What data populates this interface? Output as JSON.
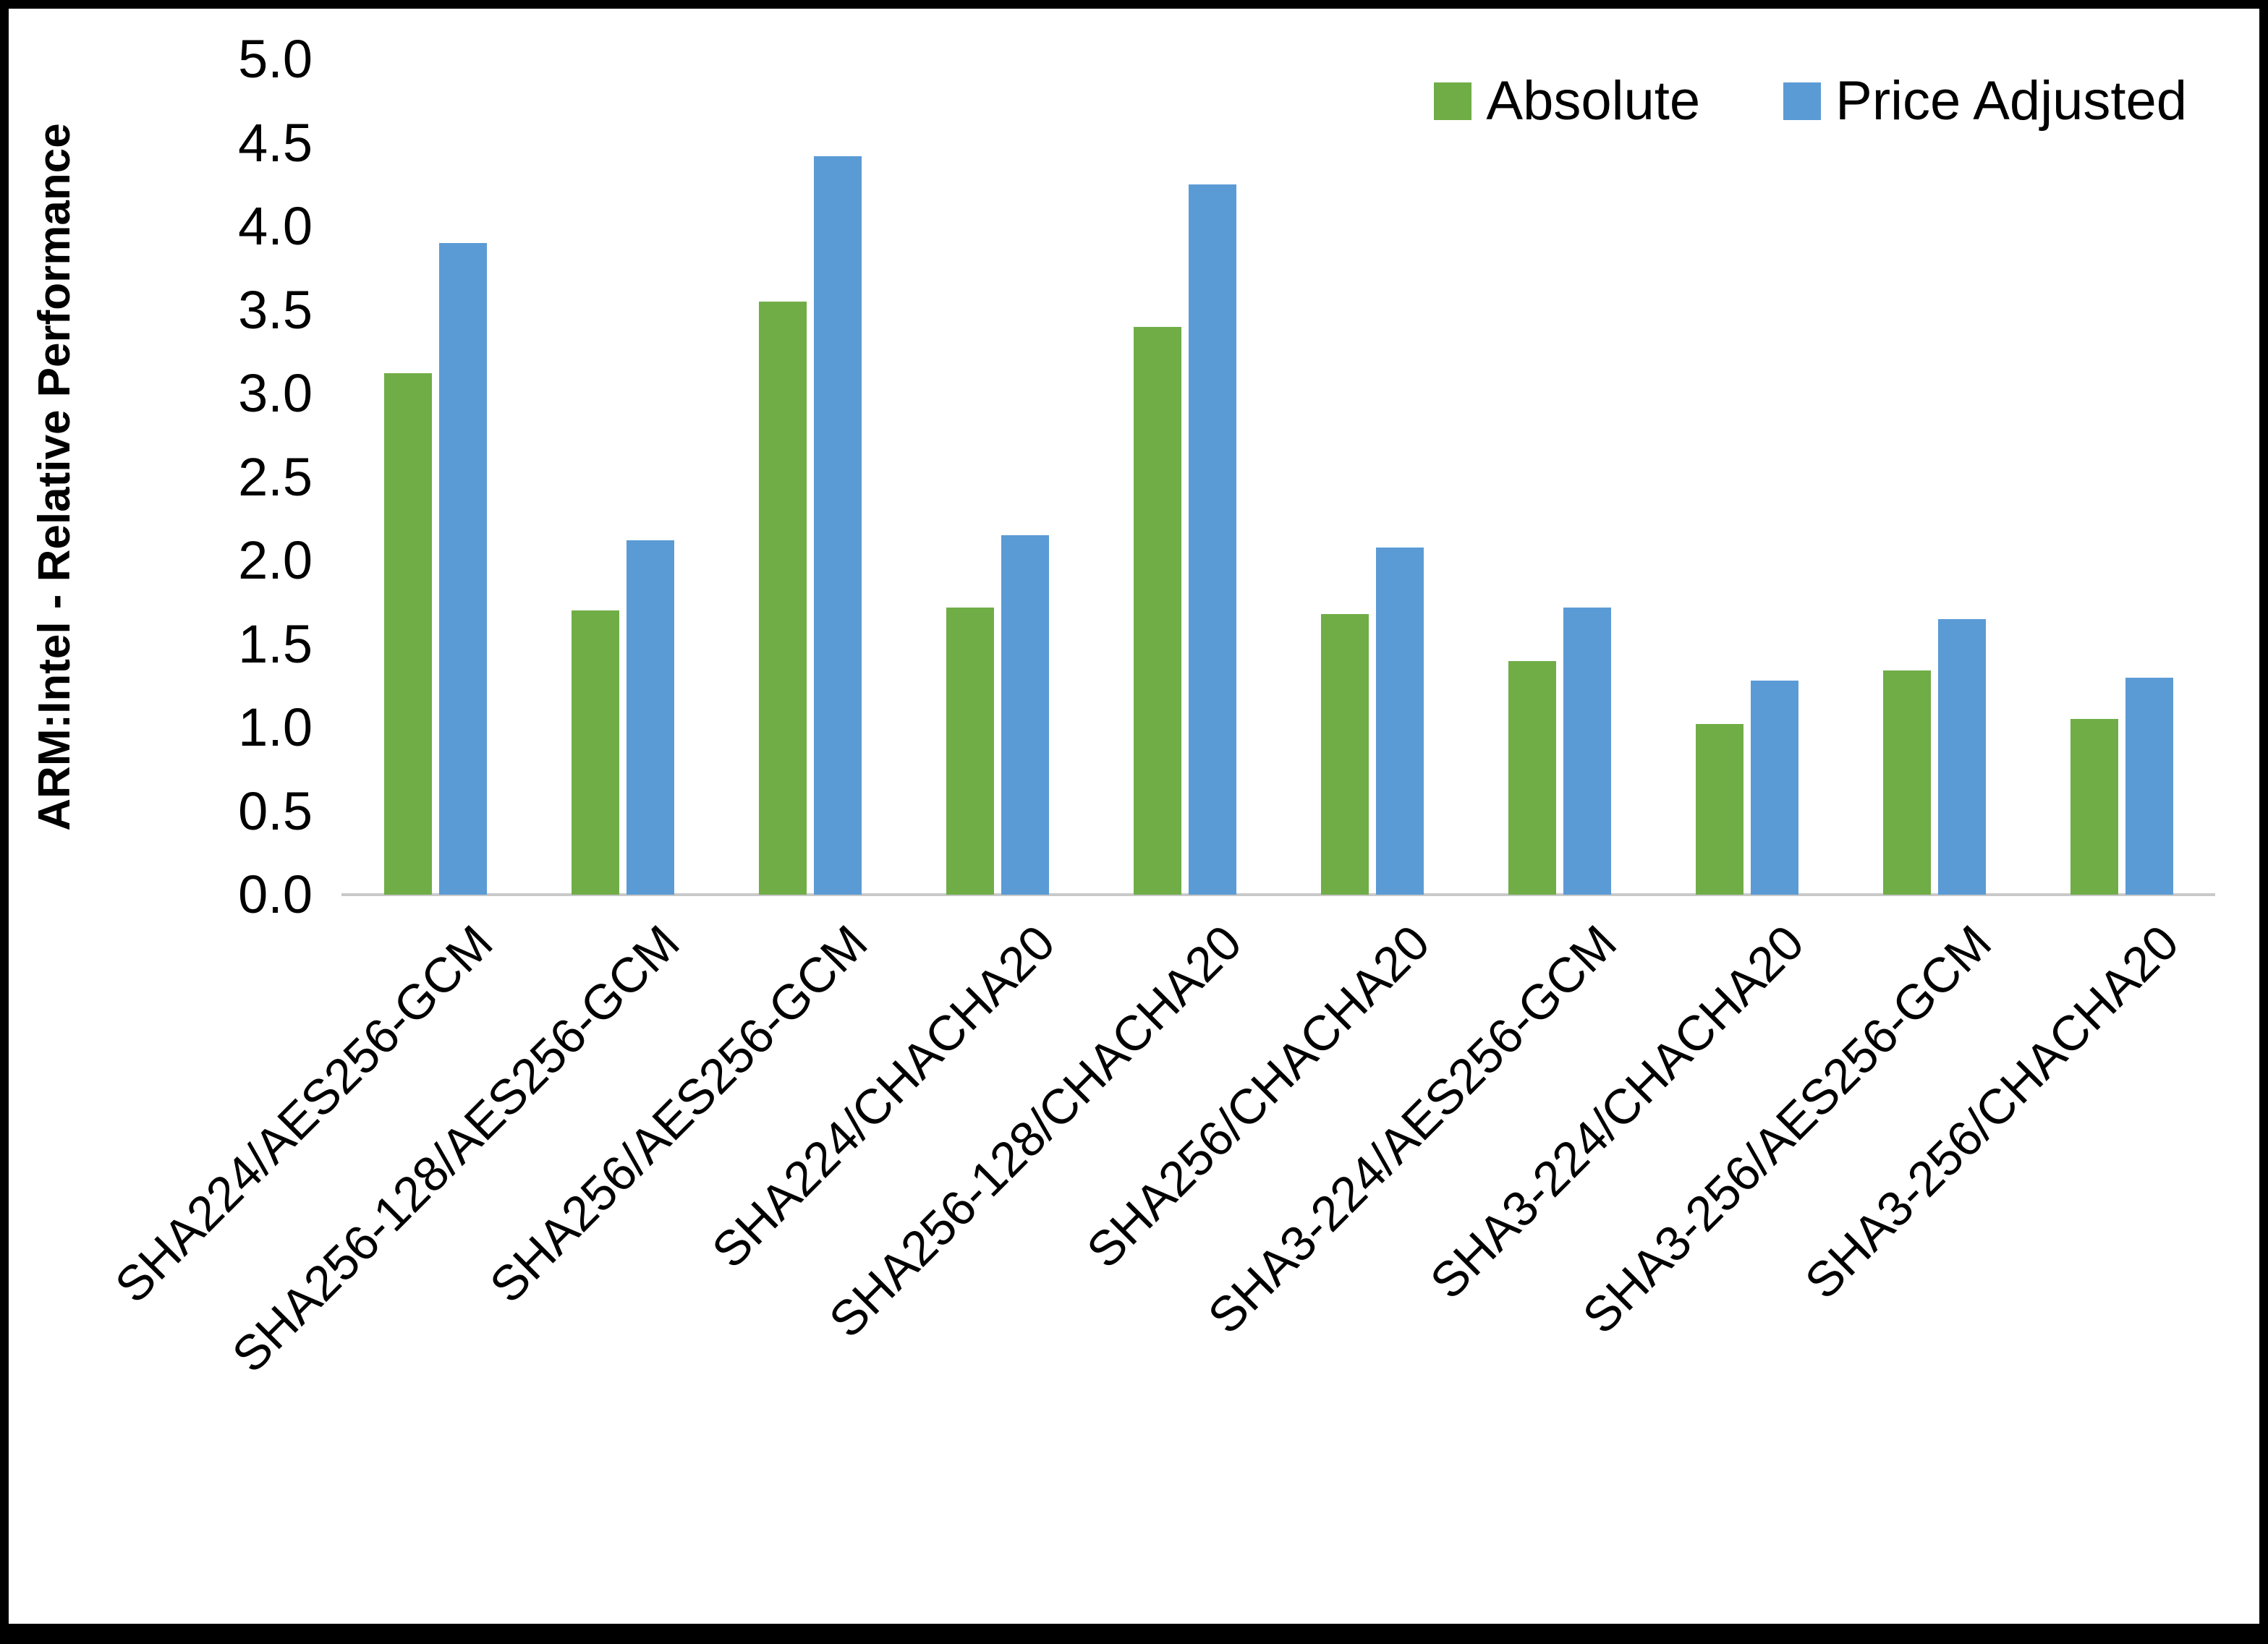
{
  "chart_data": {
    "type": "bar",
    "title": "",
    "xlabel": "",
    "ylabel": "ARM:Intel - Relative Performance",
    "ylim": [
      0,
      5
    ],
    "ytick_step": 0.5,
    "yticks": [
      "0.0",
      "0.5",
      "1.0",
      "1.5",
      "2.0",
      "2.5",
      "3.0",
      "3.5",
      "4.0",
      "4.5",
      "5.0"
    ],
    "grid": false,
    "legend_position": "top-right",
    "categories": [
      "SHA224/AES256-GCM",
      "SHA256-128/AES256-GCM",
      "SHA256/AES256-GCM",
      "SHA224/CHACHA20",
      "SHA256-128/CHACHA20",
      "SHA256/CHACHA20",
      "SHA3-224/AES256-GCM",
      "SHA3-224/CHACHA20",
      "SHA3-256/AES256-GCM",
      "SHA3-256/CHACHA20"
    ],
    "series": [
      {
        "name": "Absolute",
        "color": "#70AD47",
        "values": [
          3.12,
          1.7,
          3.55,
          1.72,
          3.4,
          1.68,
          1.4,
          1.02,
          1.34,
          1.05
        ]
      },
      {
        "name": "Price Adjusted",
        "color": "#5B9BD5",
        "values": [
          3.9,
          2.12,
          4.42,
          2.15,
          4.25,
          2.08,
          1.72,
          1.28,
          1.65,
          1.3
        ]
      }
    ]
  },
  "figure": {
    "background_color": "#FFFFFF",
    "border_color": "#000000",
    "axis_line_color": "#C9C9C9"
  }
}
